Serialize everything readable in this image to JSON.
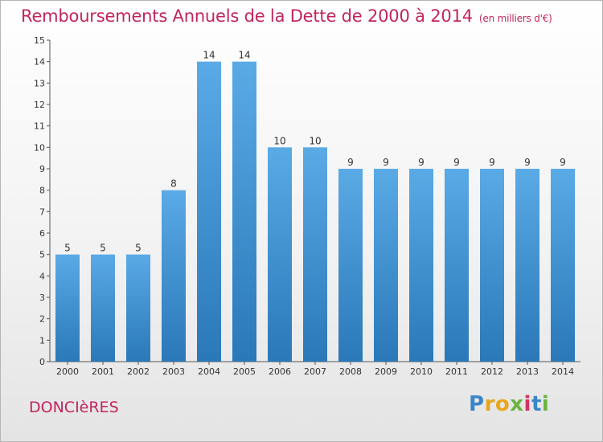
{
  "title": "Remboursements Annuels de la Dette de 2000 à 2014",
  "subtitle": "(en milliers d'€)",
  "place": "DONCIèRES",
  "logo": "Proxiti",
  "colors": {
    "title": "#c2245e",
    "bar_top": "#5aaae6",
    "bar_bottom": "#2a78b8"
  },
  "chart_data": {
    "type": "bar",
    "categories": [
      "2000",
      "2001",
      "2002",
      "2003",
      "2004",
      "2005",
      "2006",
      "2007",
      "2008",
      "2009",
      "2010",
      "2011",
      "2012",
      "2013",
      "2014"
    ],
    "values": [
      5,
      5,
      5,
      8,
      14,
      14,
      10,
      10,
      9,
      9,
      9,
      9,
      9,
      9,
      9
    ],
    "ylim": [
      0,
      15
    ],
    "yticks": [
      0,
      1,
      2,
      3,
      4,
      5,
      6,
      7,
      8,
      9,
      10,
      11,
      12,
      13,
      14,
      15
    ],
    "grid": false,
    "data_labels": true
  }
}
